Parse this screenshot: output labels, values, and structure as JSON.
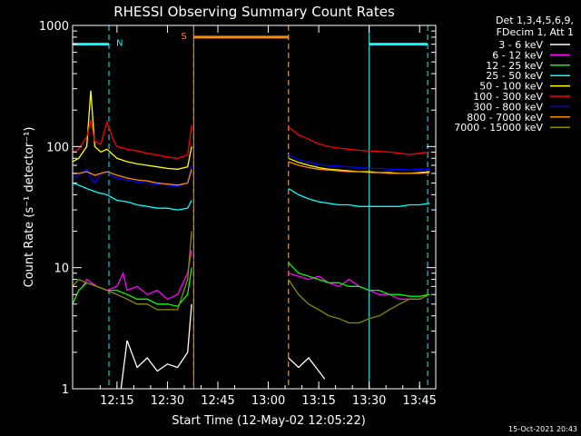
{
  "chart_data": {
    "type": "line",
    "title": "RHESSI Observing Summary Count Rates",
    "xlabel": "Start Time (12-May-02 12:05:22)",
    "ylabel": "Count Rate (s⁻¹ detector⁻¹)",
    "ylim": [
      1,
      1000
    ],
    "yscale": "log",
    "xlim_minutes": [
      12.03,
      13.83
    ],
    "x_ticks": [
      {
        "t": 12.25,
        "label": "12:15"
      },
      {
        "t": 12.5,
        "label": "12:30"
      },
      {
        "t": 12.75,
        "label": "12:45"
      },
      {
        "t": 13.0,
        "label": "13:00"
      },
      {
        "t": 13.25,
        "label": "13:15"
      },
      {
        "t": 13.5,
        "label": "13:30"
      },
      {
        "t": 13.75,
        "label": "13:45"
      }
    ],
    "y_ticks": [
      {
        "v": 1,
        "label": "1"
      },
      {
        "v": 10,
        "label": "10"
      },
      {
        "v": 100,
        "label": "100"
      },
      {
        "v": 1000,
        "label": "1000"
      }
    ],
    "legend_header": [
      "Det 1,3,4,5,6,9,",
      "FDecim 1, Att 1"
    ],
    "legend_position": "right",
    "data_gap": [
      12.63,
      13.1
    ],
    "series": [
      {
        "name": "3 - 6 keV",
        "color": "#ffffff",
        "points": [
          [
            12.27,
            1.0
          ],
          [
            12.3,
            2.5
          ],
          [
            12.35,
            1.5
          ],
          [
            12.4,
            1.8
          ],
          [
            12.45,
            1.4
          ],
          [
            12.5,
            1.6
          ],
          [
            12.55,
            1.5
          ],
          [
            12.6,
            2.0
          ],
          [
            12.62,
            5.0
          ],
          [
            13.1,
            1.8
          ],
          [
            13.15,
            1.5
          ],
          [
            13.2,
            1.8
          ],
          [
            13.25,
            1.4
          ],
          [
            13.28,
            1.2
          ]
        ]
      },
      {
        "name": "6 - 12 keV",
        "color": "#ff00ff",
        "points": [
          [
            12.08,
            7.0
          ],
          [
            12.1,
            8.0
          ],
          [
            12.15,
            7.0
          ],
          [
            12.2,
            6.5
          ],
          [
            12.25,
            7.0
          ],
          [
            12.28,
            9.0
          ],
          [
            12.3,
            6.5
          ],
          [
            12.35,
            7.0
          ],
          [
            12.4,
            6.0
          ],
          [
            12.45,
            6.5
          ],
          [
            12.5,
            5.5
          ],
          [
            12.55,
            6.0
          ],
          [
            12.6,
            9.0
          ],
          [
            12.62,
            14.0
          ],
          [
            13.1,
            9.0
          ],
          [
            13.15,
            8.5
          ],
          [
            13.2,
            8.0
          ],
          [
            13.25,
            8.5
          ],
          [
            13.3,
            7.5
          ],
          [
            13.35,
            7.0
          ],
          [
            13.4,
            8.0
          ],
          [
            13.45,
            7.0
          ],
          [
            13.5,
            6.5
          ],
          [
            13.55,
            6.0
          ],
          [
            13.6,
            6.0
          ],
          [
            13.65,
            5.5
          ],
          [
            13.7,
            5.5
          ],
          [
            13.75,
            5.5
          ],
          [
            13.8,
            6.0
          ]
        ]
      },
      {
        "name": "12 - 25 keV",
        "color": "#00ff00",
        "points": [
          [
            12.03,
            5.0
          ],
          [
            12.06,
            6.5
          ],
          [
            12.1,
            7.5
          ],
          [
            12.15,
            7.0
          ],
          [
            12.2,
            6.5
          ],
          [
            12.25,
            6.5
          ],
          [
            12.3,
            6.0
          ],
          [
            12.35,
            5.5
          ],
          [
            12.4,
            5.5
          ],
          [
            12.45,
            5.0
          ],
          [
            12.5,
            5.0
          ],
          [
            12.55,
            4.8
          ],
          [
            12.6,
            6.0
          ],
          [
            12.62,
            10.0
          ],
          [
            13.1,
            11.0
          ],
          [
            13.15,
            9.0
          ],
          [
            13.2,
            8.5
          ],
          [
            13.25,
            8.0
          ],
          [
            13.3,
            7.5
          ],
          [
            13.35,
            7.5
          ],
          [
            13.4,
            7.0
          ],
          [
            13.45,
            7.0
          ],
          [
            13.5,
            6.5
          ],
          [
            13.55,
            6.5
          ],
          [
            13.6,
            6.0
          ],
          [
            13.65,
            6.0
          ],
          [
            13.7,
            5.8
          ],
          [
            13.75,
            5.8
          ],
          [
            13.8,
            6.0
          ]
        ]
      },
      {
        "name": "25 - 50 keV",
        "color": "#00ffff",
        "points": [
          [
            12.03,
            50.0
          ],
          [
            12.06,
            48.0
          ],
          [
            12.1,
            45.0
          ],
          [
            12.15,
            42.0
          ],
          [
            12.2,
            40.0
          ],
          [
            12.25,
            36.0
          ],
          [
            12.3,
            35.0
          ],
          [
            12.35,
            33.0
          ],
          [
            12.4,
            32.0
          ],
          [
            12.45,
            31.0
          ],
          [
            12.5,
            31.0
          ],
          [
            12.55,
            30.0
          ],
          [
            12.6,
            31.0
          ],
          [
            12.62,
            36.0
          ],
          [
            13.1,
            45.0
          ],
          [
            13.15,
            40.0
          ],
          [
            13.2,
            37.0
          ],
          [
            13.25,
            35.0
          ],
          [
            13.3,
            34.0
          ],
          [
            13.35,
            33.0
          ],
          [
            13.4,
            33.0
          ],
          [
            13.45,
            32.0
          ],
          [
            13.5,
            32.0
          ],
          [
            13.55,
            32.0
          ],
          [
            13.6,
            32.0
          ],
          [
            13.65,
            32.0
          ],
          [
            13.7,
            33.0
          ],
          [
            13.75,
            33.0
          ],
          [
            13.8,
            34.0
          ]
        ]
      },
      {
        "name": "50 - 100 keV",
        "color": "#ffff00",
        "points": [
          [
            12.03,
            75.0
          ],
          [
            12.06,
            80.0
          ],
          [
            12.1,
            100.0
          ],
          [
            12.12,
            290.0
          ],
          [
            12.14,
            100.0
          ],
          [
            12.17,
            90.0
          ],
          [
            12.2,
            95.0
          ],
          [
            12.25,
            80.0
          ],
          [
            12.3,
            75.0
          ],
          [
            12.35,
            72.0
          ],
          [
            12.4,
            70.0
          ],
          [
            12.45,
            68.0
          ],
          [
            12.5,
            66.0
          ],
          [
            12.55,
            65.0
          ],
          [
            12.6,
            68.0
          ],
          [
            12.62,
            100.0
          ],
          [
            13.1,
            80.0
          ],
          [
            13.15,
            74.0
          ],
          [
            13.2,
            70.0
          ],
          [
            13.25,
            67.0
          ],
          [
            13.3,
            65.0
          ],
          [
            13.35,
            64.0
          ],
          [
            13.4,
            63.0
          ],
          [
            13.45,
            62.0
          ],
          [
            13.5,
            62.0
          ],
          [
            13.55,
            61.0
          ],
          [
            13.6,
            61.0
          ],
          [
            13.65,
            60.0
          ],
          [
            13.7,
            60.0
          ],
          [
            13.75,
            61.0
          ],
          [
            13.8,
            62.0
          ]
        ]
      },
      {
        "name": "100 - 300 keV",
        "color": "#ff0000",
        "points": [
          [
            12.03,
            90.0
          ],
          [
            12.06,
            95.0
          ],
          [
            12.1,
            120.0
          ],
          [
            12.12,
            165.0
          ],
          [
            12.14,
            110.0
          ],
          [
            12.17,
            105.0
          ],
          [
            12.2,
            160.0
          ],
          [
            12.23,
            115.0
          ],
          [
            12.25,
            100.0
          ],
          [
            12.3,
            95.0
          ],
          [
            12.35,
            92.0
          ],
          [
            12.4,
            88.0
          ],
          [
            12.45,
            85.0
          ],
          [
            12.5,
            82.0
          ],
          [
            12.55,
            80.0
          ],
          [
            12.6,
            85.0
          ],
          [
            12.62,
            150.0
          ],
          [
            13.1,
            145.0
          ],
          [
            13.15,
            125.0
          ],
          [
            13.2,
            115.0
          ],
          [
            13.25,
            105.0
          ],
          [
            13.3,
            100.0
          ],
          [
            13.35,
            97.0
          ],
          [
            13.4,
            95.0
          ],
          [
            13.45,
            93.0
          ],
          [
            13.5,
            92.0
          ],
          [
            13.55,
            91.0
          ],
          [
            13.6,
            90.0
          ],
          [
            13.65,
            88.0
          ],
          [
            13.7,
            86.0
          ],
          [
            13.75,
            88.0
          ],
          [
            13.8,
            90.0
          ]
        ]
      },
      {
        "name": "300 - 800 keV",
        "color": "#0000ff",
        "points": [
          [
            12.03,
            55.0
          ],
          [
            12.06,
            58.0
          ],
          [
            12.1,
            65.0
          ],
          [
            12.12,
            55.0
          ],
          [
            12.14,
            50.0
          ],
          [
            12.17,
            60.0
          ],
          [
            12.2,
            62.0
          ],
          [
            12.23,
            57.0
          ],
          [
            12.25,
            55.0
          ],
          [
            12.3,
            53.0
          ],
          [
            12.35,
            51.0
          ],
          [
            12.4,
            50.0
          ],
          [
            12.45,
            49.0
          ],
          [
            12.5,
            48.0
          ],
          [
            12.55,
            47.0
          ],
          [
            12.6,
            50.0
          ],
          [
            12.62,
            70.0
          ],
          [
            13.1,
            85.0
          ],
          [
            13.15,
            78.0
          ],
          [
            13.2,
            74.0
          ],
          [
            13.25,
            71.0
          ],
          [
            13.3,
            70.0
          ],
          [
            13.35,
            69.0
          ],
          [
            13.4,
            68.0
          ],
          [
            13.45,
            67.0
          ],
          [
            13.5,
            66.0
          ],
          [
            13.55,
            66.0
          ],
          [
            13.6,
            65.0
          ],
          [
            13.65,
            65.0
          ],
          [
            13.7,
            64.0
          ],
          [
            13.75,
            65.0
          ],
          [
            13.8,
            65.0
          ]
        ]
      },
      {
        "name": "800 - 7000 keV",
        "color": "#ff8c00",
        "points": [
          [
            12.03,
            60.0
          ],
          [
            12.06,
            60.0
          ],
          [
            12.1,
            62.0
          ],
          [
            12.14,
            58.0
          ],
          [
            12.17,
            60.0
          ],
          [
            12.2,
            62.0
          ],
          [
            12.25,
            58.0
          ],
          [
            12.3,
            55.0
          ],
          [
            12.35,
            53.0
          ],
          [
            12.4,
            52.0
          ],
          [
            12.45,
            50.0
          ],
          [
            12.5,
            49.0
          ],
          [
            12.55,
            48.0
          ],
          [
            12.6,
            50.0
          ],
          [
            12.62,
            65.0
          ],
          [
            13.1,
            75.0
          ],
          [
            13.15,
            70.0
          ],
          [
            13.2,
            67.0
          ],
          [
            13.25,
            65.0
          ],
          [
            13.3,
            64.0
          ],
          [
            13.35,
            63.0
          ],
          [
            13.4,
            62.0
          ],
          [
            13.45,
            62.0
          ],
          [
            13.5,
            61.0
          ],
          [
            13.55,
            61.0
          ],
          [
            13.6,
            60.0
          ],
          [
            13.65,
            60.0
          ],
          [
            13.7,
            60.0
          ],
          [
            13.75,
            60.0
          ],
          [
            13.8,
            61.0
          ]
        ]
      },
      {
        "name": "7000 - 15000 keV",
        "color": "#8b8b00",
        "points": [
          [
            12.03,
            7.0
          ],
          [
            12.06,
            8.0
          ],
          [
            12.1,
            7.5
          ],
          [
            12.15,
            7.0
          ],
          [
            12.2,
            6.5
          ],
          [
            12.25,
            6.0
          ],
          [
            12.3,
            5.5
          ],
          [
            12.35,
            5.0
          ],
          [
            12.4,
            5.0
          ],
          [
            12.45,
            4.5
          ],
          [
            12.5,
            4.5
          ],
          [
            12.55,
            4.5
          ],
          [
            12.6,
            8.0
          ],
          [
            12.62,
            20.0
          ],
          [
            13.1,
            8.0
          ],
          [
            13.15,
            6.0
          ],
          [
            13.2,
            5.0
          ],
          [
            13.25,
            4.5
          ],
          [
            13.3,
            4.0
          ],
          [
            13.35,
            3.8
          ],
          [
            13.4,
            3.5
          ],
          [
            13.45,
            3.5
          ],
          [
            13.5,
            3.8
          ],
          [
            13.55,
            4.0
          ],
          [
            13.6,
            4.5
          ],
          [
            13.65,
            5.0
          ],
          [
            13.7,
            5.5
          ],
          [
            13.75,
            5.5
          ],
          [
            13.8,
            6.0
          ]
        ]
      }
    ],
    "shaded_markers": [
      {
        "label": "N",
        "color": "#00ffff",
        "start": 12.03,
        "end": 12.21,
        "level": 700
      },
      {
        "label": "S",
        "color": "#ff8c00",
        "start": 12.63,
        "end": 13.1,
        "level": 800
      },
      {
        "label": "",
        "color": "#00ffff",
        "start": 13.5,
        "end": 13.79,
        "level": 700
      }
    ],
    "footer_timestamp": "15-Oct-2021 20:43"
  }
}
